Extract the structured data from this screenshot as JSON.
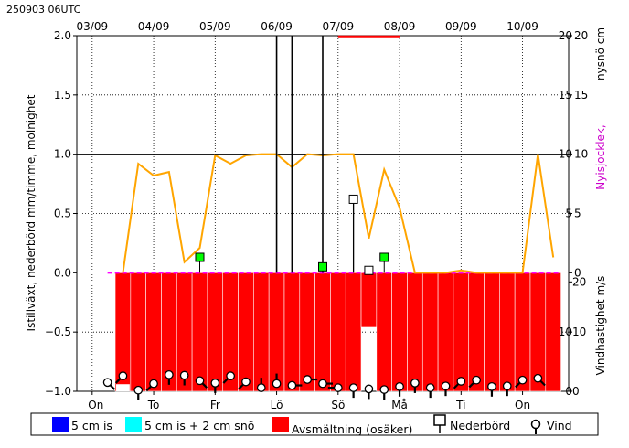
{
  "chart_data": {
    "type": "bar",
    "timestamp": "250903 06UTC",
    "top_date_ticks": [
      "03/09",
      "04/09",
      "05/09",
      "06/09",
      "07/09",
      "08/09",
      "09/09",
      "10/09"
    ],
    "day_ticks": [
      "On",
      "To",
      "Fr",
      "Lö",
      "Sö",
      "Må",
      "Ti",
      "On"
    ],
    "ylabel_left": "Istillväxt, nederbörd mm/timme, molnighet",
    "ylabel_right_upper_black": "nysnö cm",
    "ylabel_right_upper_colored": "Nyisjocklek,",
    "ylabel_right_lower": "Vindhastighet m/s",
    "left_ticks": [
      "2.0",
      "1.5",
      "1.0",
      "0.5",
      "0.0",
      "−0.5",
      "−1.0"
    ],
    "right_upper_ticks": [
      "20",
      "15",
      "10",
      "5",
      "0"
    ],
    "right_upper_ticks_inner": [
      "20",
      "15",
      "10",
      "5"
    ],
    "right_lower_ticks": [
      "20",
      "10",
      "0"
    ],
    "right_lower_ticks_inner": [
      "10",
      "0"
    ],
    "ylim": [
      -1.0,
      2.0
    ],
    "x_range_hours": [
      -6,
      186
    ],
    "cloudiness": {
      "x": [
        12,
        18,
        24,
        30,
        36,
        42,
        48,
        54,
        60,
        66,
        72,
        78,
        84,
        90,
        96,
        102,
        108,
        114,
        120,
        126,
        132,
        138,
        144,
        150,
        156,
        162,
        168,
        174,
        180
      ],
      "y": [
        0.0,
        0.92,
        0.82,
        0.85,
        0.09,
        0.21,
        0.99,
        0.92,
        0.99,
        1.0,
        1.0,
        0.89,
        1.0,
        0.99,
        1.0,
        1.0,
        0.29,
        0.87,
        0.55,
        0.0,
        0.0,
        0.0,
        0.02,
        0.0,
        0.0,
        0.0,
        0.0,
        1.0,
        0.13
      ]
    },
    "melt_bars": {
      "x": [
        12,
        18,
        24,
        30,
        36,
        42,
        48,
        54,
        60,
        66,
        72,
        78,
        84,
        90,
        96,
        102,
        108,
        114,
        120,
        126,
        132,
        138,
        144,
        150,
        156,
        162,
        168,
        174,
        180
      ],
      "y": [
        -1.0,
        -1.0,
        -1.0,
        -1.0,
        -1.0,
        -1.0,
        -1.0,
        -1.0,
        -1.0,
        -1.0,
        -1.0,
        -1.0,
        -1.0,
        -1.0,
        -1.0,
        -1.0,
        -0.46,
        -1.0,
        -1.0,
        -1.0,
        -1.0,
        -1.0,
        -1.0,
        -1.0,
        -1.0,
        -1.0,
        -1.0,
        -1.0,
        -1.0
      ],
      "gap": {
        "x": 12,
        "y_top": -0.94,
        "y_bottom": -1.0
      }
    },
    "precip_vlines": [
      {
        "x": 72,
        "y": 2.0
      },
      {
        "x": 78,
        "y": 2.0
      },
      {
        "x": 90,
        "y": 2.0
      }
    ],
    "precip_markers": [
      {
        "x": 102,
        "y": 0.62
      },
      {
        "x": 108,
        "y": 0.02
      }
    ],
    "green_markers": [
      {
        "x": 42,
        "y": 0.13
      },
      {
        "x": 90,
        "y": 0.05
      },
      {
        "x": 114,
        "y": 0.13
      }
    ],
    "red_top_line": {
      "x0": 96,
      "x1": 120,
      "y": 1.99
    },
    "wind": [
      {
        "x": 6,
        "speed": 1.5,
        "dir": "NW"
      },
      {
        "x": 12,
        "speed": 2.6,
        "dir": "NE"
      },
      {
        "x": 18,
        "speed": 0.2,
        "dir": "N"
      },
      {
        "x": 24,
        "speed": 1.3,
        "dir": "NE"
      },
      {
        "x": 30,
        "speed": 2.8,
        "dir": "N"
      },
      {
        "x": 36,
        "speed": 2.7,
        "dir": "N"
      },
      {
        "x": 42,
        "speed": 1.8,
        "dir": "NW"
      },
      {
        "x": 48,
        "speed": 1.4,
        "dir": "N"
      },
      {
        "x": 54,
        "speed": 2.6,
        "dir": "NE"
      },
      {
        "x": 60,
        "speed": 1.6,
        "dir": "NE"
      },
      {
        "x": 66,
        "speed": 0.6,
        "dir": "S"
      },
      {
        "x": 72,
        "speed": 1.3,
        "dir": "S"
      },
      {
        "x": 78,
        "speed": 1.0,
        "dir": "W"
      },
      {
        "x": 84,
        "speed": 2.0,
        "dir": "W"
      },
      {
        "x": 90,
        "speed": 1.3,
        "dir": "W"
      },
      {
        "x": 96,
        "speed": 0.6,
        "dir": "E"
      },
      {
        "x": 102,
        "speed": 0.6,
        "dir": "N"
      },
      {
        "x": 108,
        "speed": 0.4,
        "dir": "N"
      },
      {
        "x": 114,
        "speed": 0.3,
        "dir": "N"
      },
      {
        "x": 120,
        "speed": 0.8,
        "dir": "N"
      },
      {
        "x": 126,
        "speed": 1.4,
        "dir": "N"
      },
      {
        "x": 132,
        "speed": 0.6,
        "dir": "N"
      },
      {
        "x": 138,
        "speed": 0.9,
        "dir": "N"
      },
      {
        "x": 144,
        "speed": 1.7,
        "dir": "NE"
      },
      {
        "x": 150,
        "speed": 1.9,
        "dir": "NE"
      },
      {
        "x": 156,
        "speed": 0.8,
        "dir": "N"
      },
      {
        "x": 162,
        "speed": 0.9,
        "dir": "N"
      },
      {
        "x": 168,
        "speed": 1.9,
        "dir": "NE"
      },
      {
        "x": 174,
        "speed": 2.2,
        "dir": "NW"
      }
    ],
    "legend": [
      {
        "label": "5 cm is",
        "color": "#0000ff",
        "kind": "square"
      },
      {
        "label": "5 cm is + 2 cm snö",
        "color": "#00ffff",
        "kind": "square"
      },
      {
        "label": "Avsmältning (osäker)",
        "color": "#ff0000",
        "kind": "square"
      },
      {
        "label": "Nederbörd",
        "color": "#000000",
        "kind": "precip"
      },
      {
        "label": "Vind",
        "color": "#000000",
        "kind": "wind"
      }
    ],
    "colors": {
      "cloud": "#ffa500",
      "melt": "#ff0000",
      "zero_line": "#ff00ff",
      "green": "#00ff00",
      "ice_label": "#cc00cc"
    }
  }
}
